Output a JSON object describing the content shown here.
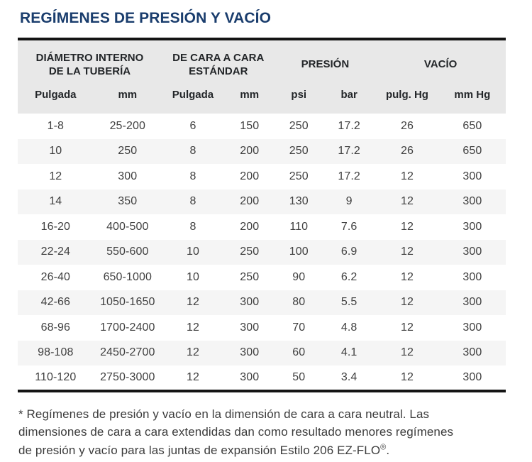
{
  "page": {
    "title": "REGÍMENES DE PRESIÓN Y VACÍO"
  },
  "table": {
    "group_headers": [
      {
        "line1": "DIÁMETRO INTERNO",
        "line2": "DE LA TUBERÍA"
      },
      {
        "line1": "DE CARA A CARA",
        "line2": "ESTÁNDAR"
      },
      {
        "line1": "PRESIÓN",
        "line2": ""
      },
      {
        "line1": "VACÍO",
        "line2": ""
      }
    ],
    "column_headers": [
      "Pulgada",
      "mm",
      "Pulgada",
      "mm",
      "psi",
      "bar",
      "pulg. Hg",
      "mm Hg"
    ],
    "rows": [
      [
        "1-8",
        "25-200",
        "6",
        "150",
        "250",
        "17.2",
        "26",
        "650"
      ],
      [
        "10",
        "250",
        "8",
        "200",
        "250",
        "17.2",
        "26",
        "650"
      ],
      [
        "12",
        "300",
        "8",
        "200",
        "250",
        "17.2",
        "12",
        "300"
      ],
      [
        "14",
        "350",
        "8",
        "200",
        "130",
        "9",
        "12",
        "300"
      ],
      [
        "16-20",
        "400-500",
        "8",
        "200",
        "110",
        "7.6",
        "12",
        "300"
      ],
      [
        "22-24",
        "550-600",
        "10",
        "250",
        "100",
        "6.9",
        "12",
        "300"
      ],
      [
        "26-40",
        "650-1000",
        "10",
        "250",
        "90",
        "6.2",
        "12",
        "300"
      ],
      [
        "42-66",
        "1050-1650",
        "12",
        "300",
        "80",
        "5.5",
        "12",
        "300"
      ],
      [
        "68-96",
        "1700-2400",
        "12",
        "300",
        "70",
        "4.8",
        "12",
        "300"
      ],
      [
        "98-108",
        "2450-2700",
        "12",
        "300",
        "60",
        "4.1",
        "12",
        "300"
      ],
      [
        "110-120",
        "2750-3000",
        "12",
        "300",
        "50",
        "3.4",
        "12",
        "300"
      ]
    ]
  },
  "footnote": {
    "line1": "* Regímenes de presión y vacío en la dimensión de cara a cara neutral. Las",
    "line2": "dimensiones de cara a cara extendidas dan como resultado menores regímenes",
    "line3_text": "de presión y vacío para las juntas de expansión Estilo 206 EZ-FLO",
    "registered": "®",
    "line3_end": "."
  },
  "colors": {
    "title_navy": "#1a3d6d",
    "header_bg": "#e8e8e8",
    "row_alt_bg": "#f5f5f5",
    "rule_black": "#141414",
    "body_text": "#404040"
  }
}
